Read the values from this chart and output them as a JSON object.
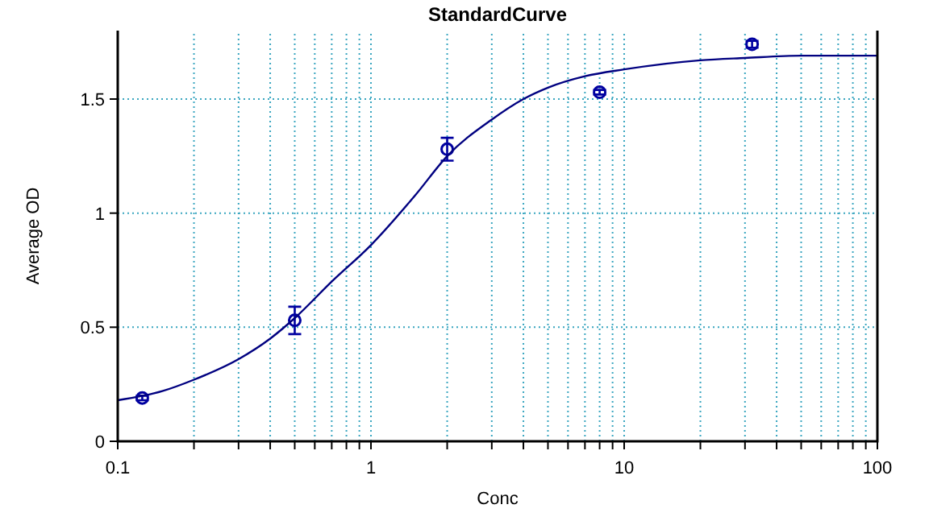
{
  "chart_data": {
    "type": "scatter",
    "title": "StandardCurve",
    "xlabel": "Conc",
    "ylabel": "Average OD",
    "log": "x",
    "xlim": [
      0.1,
      100
    ],
    "ylim": [
      0,
      1.8
    ],
    "xticks": [
      0.1,
      {
        "value": 0.2,
        "label": null
      },
      {
        "value": 0.3,
        "label": null
      },
      {
        "value": 0.4,
        "label": null
      },
      {
        "value": 0.5,
        "label": null
      },
      {
        "value": 0.6,
        "label": null
      },
      {
        "value": 0.7,
        "label": null
      },
      {
        "value": 0.8,
        "label": null
      },
      {
        "value": 0.9,
        "label": null
      },
      1,
      {
        "value": 2,
        "label": null
      },
      {
        "value": 3,
        "label": null
      },
      {
        "value": 4,
        "label": null
      },
      {
        "value": 5,
        "label": null
      },
      {
        "value": 6,
        "label": null
      },
      {
        "value": 7,
        "label": null
      },
      {
        "value": 8,
        "label": null
      },
      {
        "value": 9,
        "label": null
      },
      10,
      {
        "value": 20,
        "label": null
      },
      {
        "value": 30,
        "label": null
      },
      {
        "value": 40,
        "label": null
      },
      {
        "value": 50,
        "label": null
      },
      {
        "value": 60,
        "label": null
      },
      {
        "value": 70,
        "label": null
      },
      {
        "value": 80,
        "label": null
      },
      {
        "value": 90,
        "label": null
      },
      100
    ],
    "yticks": [
      0,
      0.5,
      1,
      1.5
    ],
    "grid": true,
    "series": [
      {
        "color": "#0000a0",
        "marker": "circle",
        "x": [
          0.125,
          0.5,
          2,
          8,
          32
        ],
        "values": [
          0.19,
          0.53,
          1.28,
          1.53,
          1.74
        ],
        "errors": [
          0.01,
          0.06,
          0.05,
          0.01,
          0.015
        ]
      },
      {
        "type": "line",
        "color": "#000080",
        "marker": "none",
        "line_style": "solid",
        "x": [
          0.1,
          0.15,
          0.2,
          0.3,
          0.4,
          0.5,
          0.7,
          1,
          1.5,
          2,
          3,
          4,
          5,
          7,
          10,
          20,
          30,
          50,
          100
        ],
        "values": [
          0.18,
          0.22,
          0.27,
          0.36,
          0.45,
          0.54,
          0.7,
          0.86,
          1.08,
          1.25,
          1.41,
          1.5,
          1.55,
          1.6,
          1.63,
          1.67,
          1.68,
          1.69,
          1.69
        ]
      }
    ]
  }
}
